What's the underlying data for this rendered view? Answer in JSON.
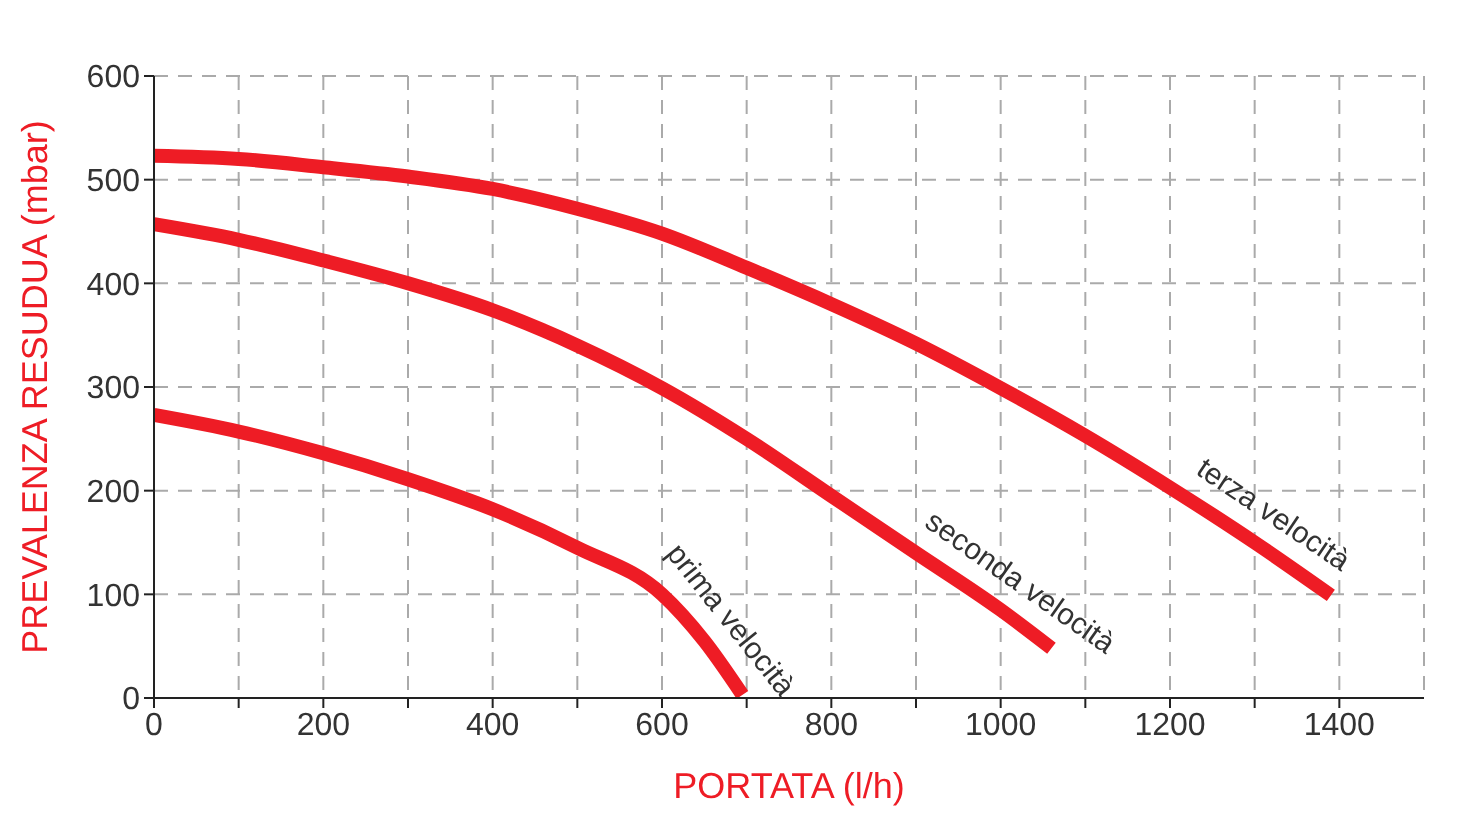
{
  "chart_data": {
    "type": "line",
    "xlabel": "PORTATA (l/h)",
    "ylabel": "PREVALENZA RESUDUA (mbar)",
    "xlim": [
      0,
      1500
    ],
    "ylim": [
      0,
      600
    ],
    "xticks": [
      0,
      {
        "value": 100,
        "label": null
      },
      200,
      {
        "value": 300,
        "label": null
      },
      400,
      {
        "value": 500,
        "label": null
      },
      600,
      {
        "value": 700,
        "label": null
      },
      800,
      {
        "value": 900,
        "label": null
      },
      1000,
      {
        "value": 1100,
        "label": null
      },
      1200,
      {
        "value": 1300,
        "label": null
      },
      1400
    ],
    "yticks": [
      0,
      100,
      200,
      300,
      400,
      500,
      600
    ],
    "grid": true,
    "marker": "none",
    "line_style": "solid",
    "series": [
      {
        "name": "prima velocità",
        "color": "#ee1c25",
        "x": [
          0,
          100,
          200,
          300,
          400,
          500,
          600,
          650,
          695
        ],
        "values": [
          273,
          257,
          236,
          211,
          182,
          145,
          100,
          55,
          3
        ]
      },
      {
        "name": "seconda velocità",
        "color": "#ee1c25",
        "x": [
          0,
          100,
          200,
          300,
          400,
          500,
          600,
          700,
          800,
          900,
          1000,
          1060
        ],
        "values": [
          457,
          442,
          422,
          400,
          374,
          340,
          299,
          250,
          195,
          140,
          85,
          48
        ]
      },
      {
        "name": "terza velocità",
        "color": "#ee1c25",
        "x": [
          0,
          100,
          200,
          300,
          400,
          500,
          600,
          700,
          800,
          900,
          1000,
          1100,
          1200,
          1300,
          1390
        ],
        "values": [
          523,
          520,
          512,
          503,
          491,
          472,
          448,
          415,
          380,
          342,
          299,
          253,
          203,
          150,
          99
        ]
      }
    ]
  }
}
